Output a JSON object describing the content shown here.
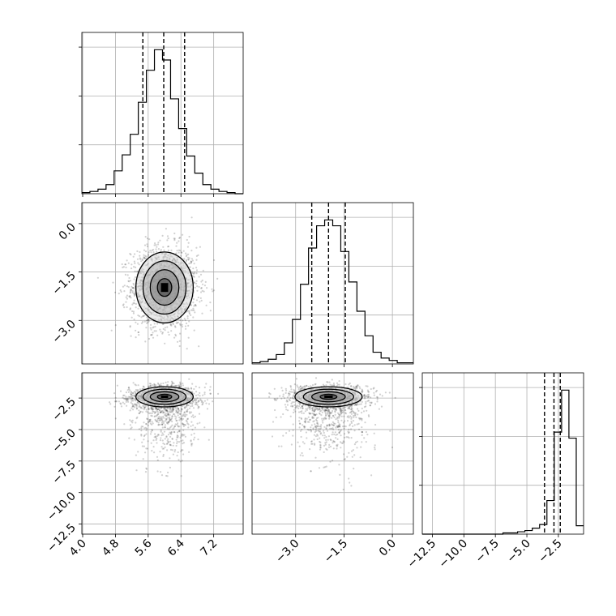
{
  "chart_data": {
    "type": "corner",
    "grid": true,
    "parameters": [
      {
        "ticks": [
          4.0,
          4.8,
          5.6,
          6.4,
          7.2
        ],
        "tick_labels": [
          "4.0",
          "4.8",
          "5.6",
          "6.4",
          "7.2"
        ],
        "range": [
          3.98,
          7.92
        ]
      },
      {
        "ticks": [
          -3.0,
          -1.5,
          0.0
        ],
        "tick_labels": [
          "−3.0",
          "−1.5",
          "0.0"
        ],
        "range": [
          -4.35,
          0.65
        ]
      },
      {
        "ticks": [
          -12.5,
          -10.0,
          -7.5,
          -5.0,
          -2.5
        ],
        "tick_labels": [
          "−12.5",
          "−10.0",
          "−7.5",
          "−5.0",
          "−2.5"
        ],
        "range": [
          -13.3,
          -0.5
        ]
      }
    ],
    "histograms": [
      {
        "param": 0,
        "edges_range": [
          3.98,
          7.92
        ],
        "counts": [
          1,
          2,
          4,
          8,
          20,
          34,
          52,
          80,
          108,
          126,
          117,
          83,
          57,
          33,
          18,
          8,
          4,
          2,
          1,
          0
        ],
        "quantiles": [
          5.47,
          5.98,
          6.49
        ]
      },
      {
        "param": 1,
        "edges_range": [
          -4.35,
          0.65
        ],
        "counts": [
          1,
          2,
          4,
          8,
          18,
          38,
          68,
          99,
          118,
          123,
          118,
          96,
          70,
          45,
          24,
          10,
          5,
          3,
          1,
          1
        ],
        "quantiles": [
          -2.5,
          -1.98,
          -1.46
        ]
      },
      {
        "param": 2,
        "edges_range": [
          -13.3,
          -0.5
        ],
        "counts": [
          0,
          0,
          0,
          0,
          0,
          0,
          0,
          0,
          0,
          0,
          0,
          1,
          1,
          2,
          3,
          5,
          8,
          28,
          85,
          120,
          80,
          7
        ],
        "quantiles": [
          -3.6,
          -2.85,
          -2.35
        ]
      }
    ],
    "pairs": [
      {
        "x": 0,
        "y": 1,
        "center": [
          6.0,
          -1.98
        ],
        "sigma_x": 0.35,
        "sigma_y": 0.55,
        "n_points": 1800
      },
      {
        "x": 0,
        "y": 2,
        "center": [
          6.0,
          -2.4
        ],
        "sigma_x": 0.35,
        "sigma_y": 0.4,
        "n_points": 1800
      },
      {
        "x": 1,
        "y": 2,
        "center": [
          -1.98,
          -2.4
        ],
        "sigma_x": 0.52,
        "sigma_y": 0.4,
        "n_points": 1800
      }
    ],
    "contour_levels_sigma": [
      0.5,
      1.0,
      1.5,
      2.0
    ]
  }
}
